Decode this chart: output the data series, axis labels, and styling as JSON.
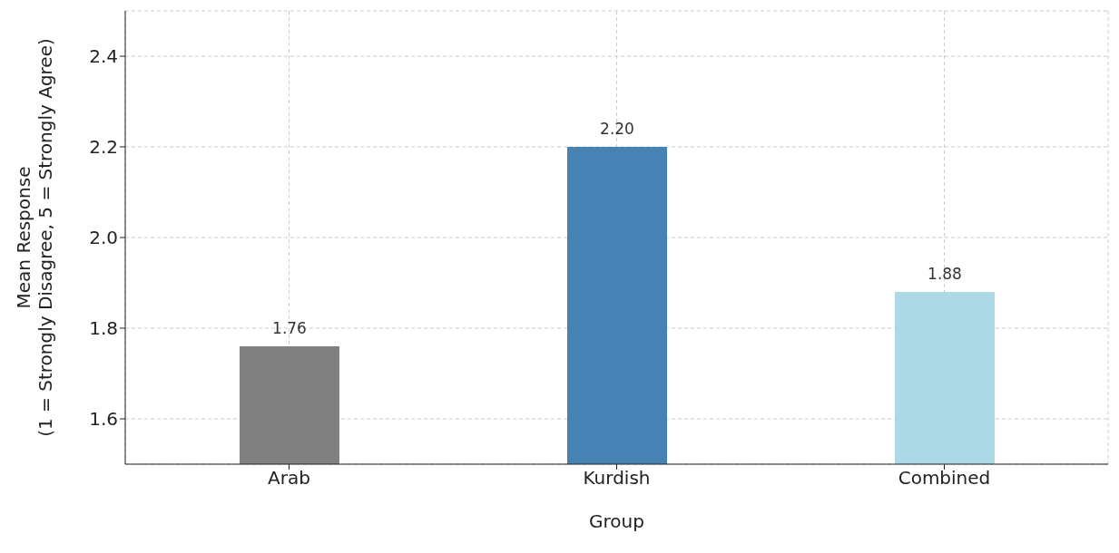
{
  "chart_data": {
    "type": "bar",
    "xlabel": "Group",
    "ylabel": "Mean Response\n(1 = Strongly Disagree, 5 = Strongly Agree)",
    "categories": [
      "Arab",
      "Kurdish",
      "Combined"
    ],
    "values": [
      1.76,
      2.2,
      1.88
    ],
    "colors": [
      "#808080",
      "#4682b4",
      "#add8e6"
    ],
    "value_labels": [
      "1.76",
      "2.20",
      "1.88"
    ],
    "ylim": [
      1.5,
      2.5
    ],
    "yticks": [
      1.6,
      1.8,
      {
        "value": 2.0,
        "label": "2.0"
      },
      2.2,
      2.4
    ],
    "grid": true
  }
}
